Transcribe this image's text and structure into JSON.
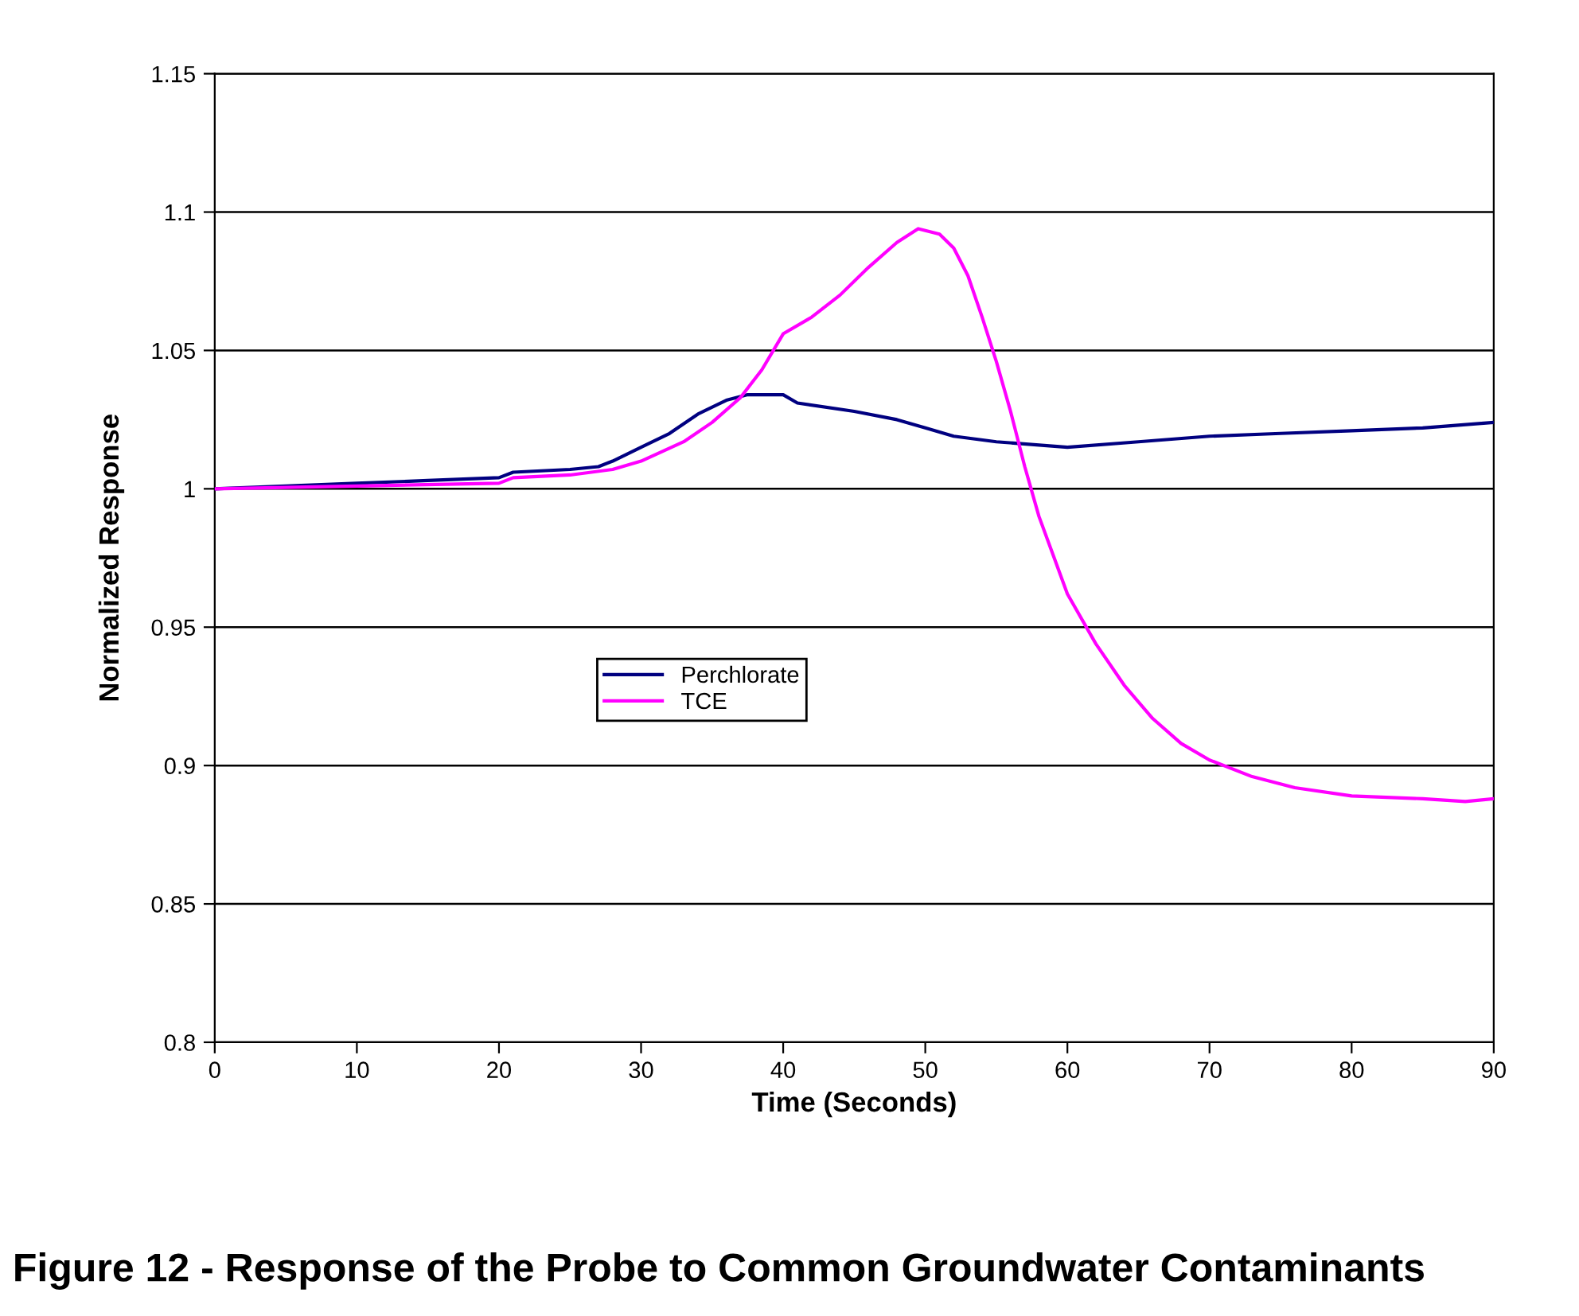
{
  "chart_data": {
    "type": "line",
    "title": "Figure 12 - Response of the Probe to Common Groundwater Contaminants",
    "xlabel": "Time (Seconds)",
    "ylabel": "Normalized Response",
    "xlim": [
      0,
      90
    ],
    "xticks": [
      0,
      10,
      20,
      30,
      40,
      50,
      60,
      70,
      80,
      90
    ],
    "ylim": [
      0.8,
      1.15
    ],
    "yticks": [
      0.8,
      0.85,
      0.9,
      0.95,
      1,
      1.05,
      1.1,
      1.15
    ],
    "grid": "y",
    "legend": "left",
    "marker": "none",
    "line_style": "solid",
    "series": [
      {
        "name": "Perchlorate",
        "color": "#000080",
        "x": [
          0,
          5,
          10,
          15,
          20,
          21,
          25,
          27,
          28,
          30,
          32,
          34,
          36,
          37.5,
          40,
          41,
          45,
          48,
          50,
          52,
          55,
          60,
          65,
          70,
          75,
          80,
          85,
          90
        ],
        "values": [
          1.0,
          1.001,
          1.002,
          1.003,
          1.004,
          1.006,
          1.007,
          1.008,
          1.01,
          1.015,
          1.02,
          1.027,
          1.032,
          1.034,
          1.034,
          1.031,
          1.028,
          1.025,
          1.022,
          1.019,
          1.017,
          1.015,
          1.017,
          1.019,
          1.02,
          1.021,
          1.022,
          1.024
        ]
      },
      {
        "name": "TCE",
        "color": "#ff00ff",
        "x": [
          0,
          10,
          20,
          21,
          25,
          28,
          30,
          33,
          35,
          37,
          38.5,
          40,
          42,
          44,
          46,
          48,
          49.5,
          51,
          52,
          53,
          54,
          55,
          56,
          57,
          58,
          59,
          60,
          62,
          64,
          66,
          68,
          70,
          73,
          76,
          80,
          85,
          88,
          90
        ],
        "values": [
          1.0,
          1.001,
          1.002,
          1.004,
          1.005,
          1.007,
          1.01,
          1.017,
          1.024,
          1.033,
          1.043,
          1.056,
          1.062,
          1.07,
          1.08,
          1.089,
          1.094,
          1.092,
          1.087,
          1.077,
          1.062,
          1.046,
          1.028,
          1.008,
          0.99,
          0.976,
          0.962,
          0.944,
          0.929,
          0.917,
          0.908,
          0.902,
          0.896,
          0.892,
          0.889,
          0.888,
          0.887,
          0.888
        ]
      }
    ]
  }
}
